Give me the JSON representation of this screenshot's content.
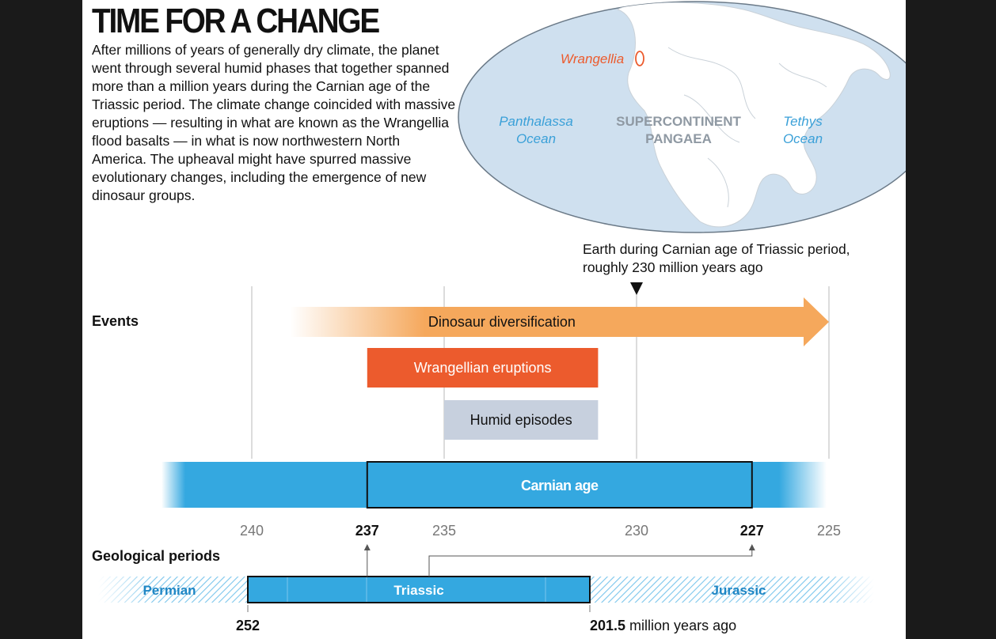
{
  "title": "TIME FOR A CHANGE",
  "intro": "After millions of years of generally dry climate, the planet went through several humid phases that together spanned more than a million years during the Carnian age of the Triassic period. The climate change coincided with massive eruptions — resulting in what are known as the Wrangellia flood basalts — in what is now northwestern North America. The upheaval might have spurred massive evolutionary changes, including the emergence of new dinosaur groups.",
  "map": {
    "wrangellia_label": "Wrangellia",
    "panthalassa": [
      "Panthalassa",
      "Ocean"
    ],
    "pangaea": [
      "SUPERCONTINENT",
      "PANGAEA"
    ],
    "tethys": [
      "Tethys",
      "Ocean"
    ],
    "caption": "Earth during Carnian age of Triassic period, roughly 230 million years ago"
  },
  "timeline": {
    "events_label": "Events",
    "bars": [
      {
        "label": "Dinosaur diversification",
        "start": 239,
        "end": 225,
        "color": "#f5a85c"
      },
      {
        "label": "Wrangellian eruptions",
        "start": 237,
        "end": 231,
        "color": "#ec5b2d"
      },
      {
        "label": "Humid episodes",
        "start": 235,
        "end": 231,
        "color": "#c7d0de"
      }
    ],
    "carnian": {
      "label": "Carnian age",
      "start": 237,
      "end": 227
    },
    "marker_value": 230,
    "ticks": [
      {
        "value": 240,
        "label": "240",
        "bold": false
      },
      {
        "value": 237,
        "label": "237",
        "bold": true
      },
      {
        "value": 235,
        "label": "235",
        "bold": false
      },
      {
        "value": 230,
        "label": "230",
        "bold": false
      },
      {
        "value": 227,
        "label": "227",
        "bold": true
      },
      {
        "value": 225,
        "label": "225",
        "bold": false
      }
    ],
    "gridlines": [
      240,
      235,
      230,
      225
    ]
  },
  "geology": {
    "label": "Geological periods",
    "periods": [
      {
        "name": "Permian"
      },
      {
        "name": "Triassic",
        "start": 252,
        "end": 201.5
      },
      {
        "name": "Jurassic"
      }
    ],
    "start_label": "252",
    "end_label": "201.5",
    "unit": "million years ago"
  },
  "colors": {
    "blue": "#34a8e0",
    "orange": "#ec5b2d",
    "light_orange": "#f5a85c",
    "humid": "#c7d0de",
    "ocean": "#cfe0ef",
    "ocean_text": "#3aa0d8",
    "land": "#ffffff"
  }
}
